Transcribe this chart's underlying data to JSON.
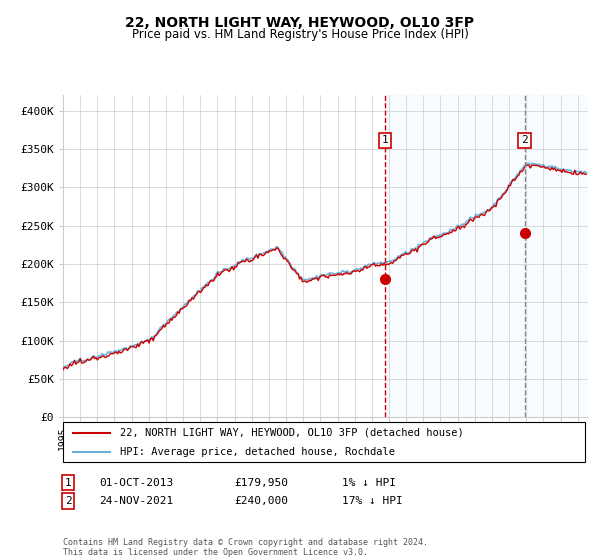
{
  "title": "22, NORTH LIGHT WAY, HEYWOOD, OL10 3FP",
  "subtitle": "Price paid vs. HM Land Registry's House Price Index (HPI)",
  "legend_line1": "22, NORTH LIGHT WAY, HEYWOOD, OL10 3FP (detached house)",
  "legend_line2": "HPI: Average price, detached house, Rochdale",
  "annotation1_date": "01-OCT-2013",
  "annotation1_price": "£179,950",
  "annotation1_hpi": "1% ↓ HPI",
  "annotation2_date": "24-NOV-2021",
  "annotation2_price": "£240,000",
  "annotation2_hpi": "17% ↓ HPI",
  "footer": "Contains HM Land Registry data © Crown copyright and database right 2024.\nThis data is licensed under the Open Government Licence v3.0.",
  "hpi_color": "#6baed6",
  "price_color": "#cc0000",
  "marker_color": "#cc0000",
  "vline1_color": "#cc0000",
  "vline2_color": "#888888",
  "shade_color": "#ddeeff",
  "background_color": "#ffffff",
  "grid_color": "#cccccc",
  "ylim": [
    0,
    420000
  ],
  "yticks": [
    0,
    50000,
    100000,
    150000,
    200000,
    250000,
    300000,
    350000,
    400000
  ],
  "ytick_labels": [
    "£0",
    "£50K",
    "£100K",
    "£150K",
    "£200K",
    "£250K",
    "£300K",
    "£350K",
    "£400K"
  ],
  "sale1_year": 2013.75,
  "sale1_value": 179950,
  "sale2_year": 2021.9,
  "sale2_value": 240000
}
